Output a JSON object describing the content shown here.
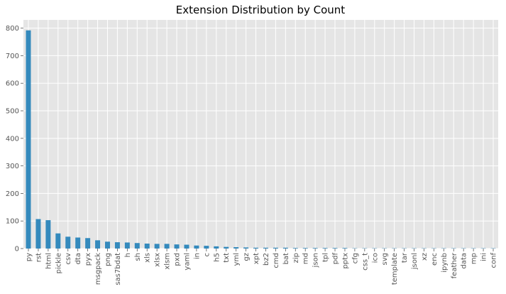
{
  "chart_data": {
    "type": "bar",
    "title": "Extension Distribution by Count",
    "xlabel": "",
    "ylabel": "",
    "ylim": [
      0,
      830
    ],
    "yticks": [
      0,
      100,
      200,
      300,
      400,
      500,
      600,
      700,
      800
    ],
    "grid": true,
    "legend": "none",
    "categories": [
      "py",
      "rst",
      "html",
      "pickle",
      "csv",
      "dta",
      "pyx",
      "msgpack",
      "png",
      "sas7bdat",
      "h",
      "sh",
      "xls",
      "xlsx",
      "xlsm",
      "pxd",
      "yaml",
      "in",
      "c",
      "h5",
      "txt",
      "yml",
      "gz",
      "xpt",
      "bz2",
      "cmd",
      "bat",
      "zip",
      "md",
      "json",
      "tpl",
      "pdf",
      "pptx",
      "cfg",
      "css_t",
      "ico",
      "svg",
      "template",
      "tar",
      "jsonl",
      "xz",
      "enc",
      "ipynb",
      "feather",
      "data",
      "mp",
      "ini",
      "conf"
    ],
    "values": [
      792,
      107,
      103,
      55,
      43,
      40,
      38,
      30,
      25,
      23,
      22,
      20,
      18,
      17,
      17,
      15,
      14,
      11,
      10,
      8,
      6,
      5,
      4,
      3,
      3,
      3,
      3,
      2,
      2,
      2,
      2,
      2,
      2,
      1,
      1,
      1,
      1,
      1,
      1,
      1,
      1,
      1,
      1,
      1,
      1,
      1,
      1,
      1
    ]
  },
  "colors": {
    "bar": "#348abd",
    "plot_background": "#e5e5e5",
    "grid": "#ffffff",
    "text": "#555555",
    "title": "#000000"
  }
}
